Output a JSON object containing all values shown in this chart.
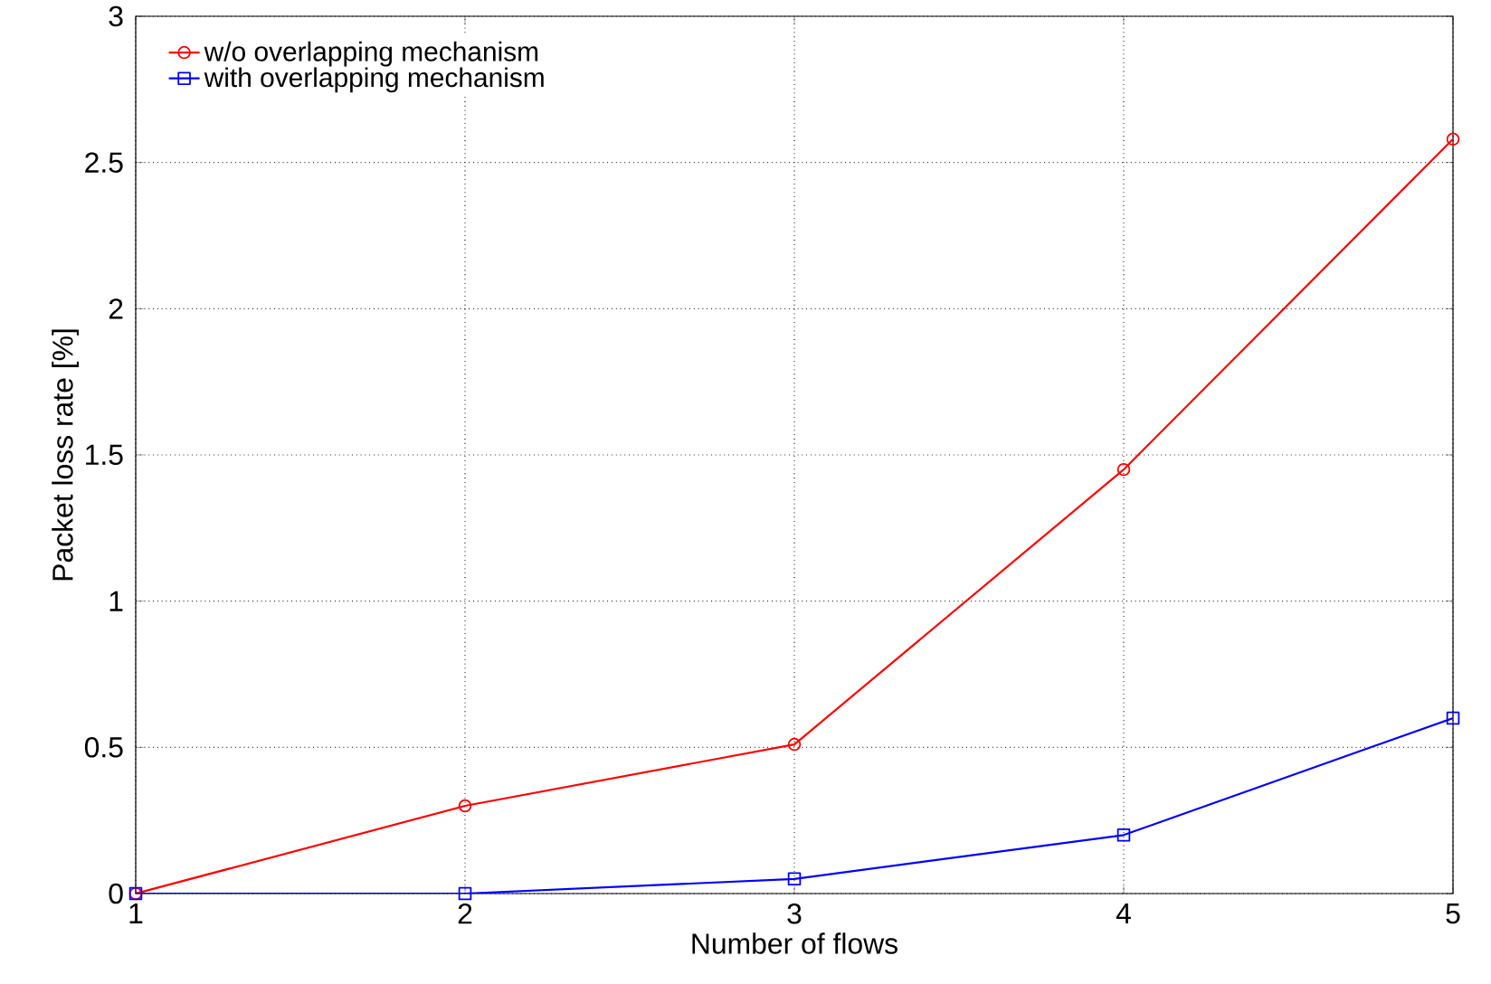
{
  "chart_data": {
    "type": "line",
    "xlabel": "Number of flows",
    "ylabel": "Packet loss rate [%]",
    "x": [
      1,
      2,
      3,
      4,
      5
    ],
    "series": [
      {
        "name": "w/o overlapping mechanism",
        "color": "#ff0000",
        "marker": "circle",
        "values": [
          0,
          0.3,
          0.51,
          1.45,
          2.58
        ]
      },
      {
        "name": "with overlapping mechanism",
        "color": "#0000ff",
        "marker": "square",
        "values": [
          0,
          0,
          0.05,
          0.2,
          0.6
        ]
      }
    ],
    "xlim": [
      1,
      5
    ],
    "ylim": [
      0,
      3
    ],
    "xticks": [
      1,
      2,
      3,
      4,
      5
    ],
    "yticks": [
      0,
      0.5,
      1,
      1.5,
      2,
      2.5,
      3
    ],
    "grid": true,
    "legend": "top left",
    "line_style": "solid"
  }
}
